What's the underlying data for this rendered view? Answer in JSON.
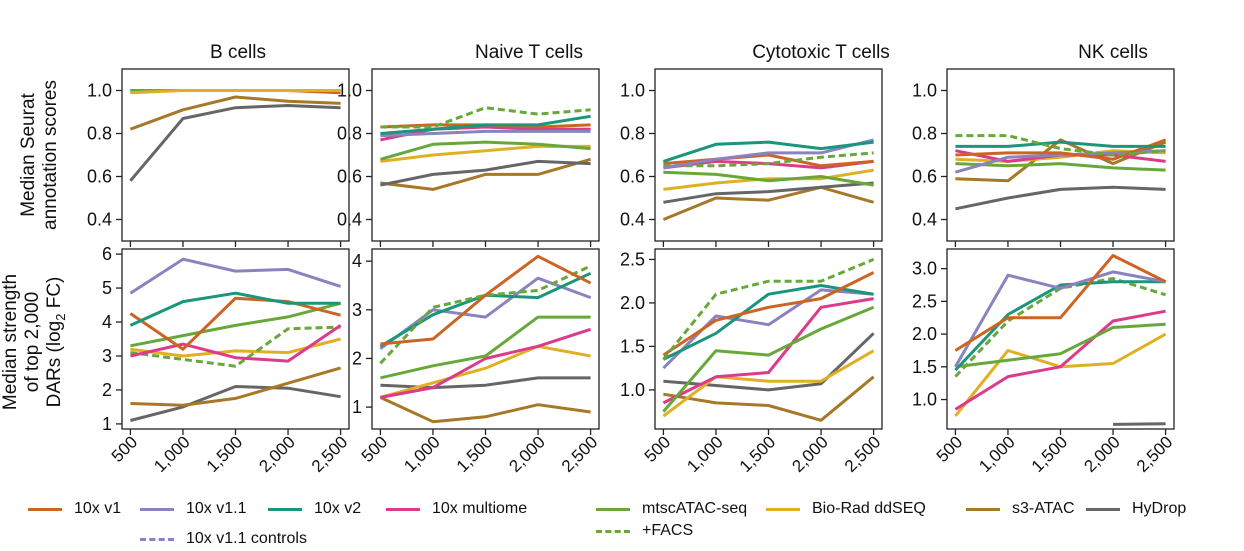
{
  "figure": {
    "row_titles": {
      "top": [
        "Median Seurat",
        "annotation scores"
      ],
      "bottom": [
        "Median strength",
        "of top 2,000",
        "DARs (log",
        "2",
        " FC)"
      ]
    }
  },
  "legend": [
    {
      "key": "10x_v1",
      "label": "10x v1",
      "color": "#cc6424",
      "dashed": false
    },
    {
      "key": "10x_v1_1",
      "label": "10x v1.1",
      "color": "#8b82c0",
      "dashed": false
    },
    {
      "key": "10x_v2",
      "label": "10x v2",
      "color": "#1a967a",
      "dashed": false
    },
    {
      "key": "10x_multiome",
      "label": "10x multiome",
      "color": "#de3a8a",
      "dashed": false
    },
    {
      "key": "mtscatac",
      "label": "mtscATAC-seq",
      "color": "#68a83a",
      "dashed": false
    },
    {
      "key": "facs",
      "label": "+FACS",
      "color": "#68a83a",
      "dashed": true
    },
    {
      "key": "biorad",
      "label": "Bio-Rad ddSEQ",
      "color": "#e0b024",
      "dashed": false
    },
    {
      "key": "s3atac",
      "label": "s3-ATAC",
      "color": "#a67828",
      "dashed": false
    },
    {
      "key": "hydrop",
      "label": "HyDrop",
      "color": "#666666",
      "dashed": false
    },
    {
      "key": "10x_v1_1_controls",
      "label": "10x v1.1 controls",
      "color": "#8b82c0",
      "dashed": true
    }
  ],
  "chart_data": [
    {
      "type": "line",
      "title": "B cells",
      "row": "annotation",
      "col": 0,
      "ylabel": "Median Seurat annotation scores",
      "x": [
        500,
        1000,
        1500,
        2000,
        2500
      ],
      "xlim": [
        420,
        2580
      ],
      "ylim": [
        0.3,
        1.1
      ],
      "yticks": [
        0.4,
        0.6,
        0.8,
        1.0
      ],
      "ytick_labels": [
        "0.4",
        "0.6",
        "0.8",
        "1.0"
      ],
      "series": [
        {
          "key": "s3atac",
          "values": [
            0.82,
            0.91,
            0.97,
            0.95,
            0.94
          ]
        },
        {
          "key": "hydrop",
          "values": [
            0.58,
            0.87,
            0.92,
            0.93,
            0.92
          ]
        },
        {
          "key": "10x_v1",
          "values": [
            1.0,
            1.0,
            1.0,
            1.0,
            0.99
          ]
        },
        {
          "key": "10x_v1_1",
          "values": [
            1.0,
            1.0,
            1.0,
            1.0,
            1.0
          ]
        },
        {
          "key": "10x_v2",
          "values": [
            1.0,
            1.0,
            1.0,
            1.0,
            1.0
          ]
        },
        {
          "key": "mtscatac",
          "values": [
            1.0,
            1.0,
            1.0,
            1.0,
            1.0
          ]
        },
        {
          "key": "biorad",
          "values": [
            0.99,
            1.0,
            1.0,
            1.0,
            1.0
          ]
        }
      ]
    },
    {
      "type": "line",
      "title": "Naive T cells",
      "row": "annotation",
      "col": 1,
      "x": [
        500,
        1000,
        1500,
        2000,
        2500
      ],
      "xlim": [
        420,
        2580
      ],
      "ylim": [
        0.3,
        1.1
      ],
      "yticks": [
        0.4,
        0.6,
        0.8,
        1.0
      ],
      "ytick_labels": [
        "0.4",
        "0.6",
        "0.8",
        "1.0"
      ],
      "series": [
        {
          "key": "s3atac",
          "values": [
            0.57,
            0.54,
            0.61,
            0.61,
            0.68
          ]
        },
        {
          "key": "hydrop",
          "values": [
            0.56,
            0.61,
            0.63,
            0.67,
            0.66
          ]
        },
        {
          "key": "biorad",
          "values": [
            0.67,
            0.7,
            0.72,
            0.74,
            0.74
          ]
        },
        {
          "key": "mtscatac",
          "values": [
            0.68,
            0.75,
            0.76,
            0.75,
            0.73
          ]
        },
        {
          "key": "10x_multiome",
          "values": [
            0.77,
            0.82,
            0.83,
            0.82,
            0.82
          ]
        },
        {
          "key": "10x_v1_1",
          "values": [
            0.79,
            0.8,
            0.81,
            0.81,
            0.81
          ]
        },
        {
          "key": "10x_v1",
          "values": [
            0.83,
            0.84,
            0.84,
            0.83,
            0.84
          ]
        },
        {
          "key": "10x_v2",
          "values": [
            0.8,
            0.82,
            0.84,
            0.84,
            0.88
          ]
        },
        {
          "key": "facs",
          "values": [
            0.83,
            0.83,
            0.92,
            0.89,
            0.91
          ]
        }
      ]
    },
    {
      "type": "line",
      "title": "Cytotoxic T cells",
      "row": "annotation",
      "col": 2,
      "x": [
        500,
        1000,
        1500,
        2000,
        2500
      ],
      "xlim": [
        420,
        2580
      ],
      "ylim": [
        0.3,
        1.1
      ],
      "yticks": [
        0.4,
        0.6,
        0.8,
        1.0
      ],
      "ytick_labels": [
        "0.4",
        "0.6",
        "0.8",
        "1.0"
      ],
      "series": [
        {
          "key": "s3atac",
          "values": [
            0.4,
            0.5,
            0.49,
            0.55,
            0.48
          ]
        },
        {
          "key": "hydrop",
          "values": [
            0.48,
            0.52,
            0.53,
            0.55,
            0.57
          ]
        },
        {
          "key": "biorad",
          "values": [
            0.54,
            0.57,
            0.59,
            0.59,
            0.63
          ]
        },
        {
          "key": "mtscatac",
          "values": [
            0.62,
            0.61,
            0.58,
            0.6,
            0.56
          ]
        },
        {
          "key": "10x_multiome",
          "values": [
            0.64,
            0.67,
            0.66,
            0.64,
            0.67
          ]
        },
        {
          "key": "10x_v1",
          "values": [
            0.66,
            0.68,
            0.7,
            0.65,
            0.67
          ]
        },
        {
          "key": "facs",
          "values": [
            0.65,
            0.65,
            0.66,
            0.69,
            0.71
          ]
        },
        {
          "key": "10x_v1_1",
          "values": [
            0.64,
            0.68,
            0.71,
            0.71,
            0.77
          ]
        },
        {
          "key": "10x_v2",
          "values": [
            0.67,
            0.75,
            0.76,
            0.73,
            0.76
          ]
        }
      ]
    },
    {
      "type": "line",
      "title": "NK cells",
      "row": "annotation",
      "col": 3,
      "x": [
        500,
        1000,
        1500,
        2000,
        2500
      ],
      "xlim": [
        420,
        2580
      ],
      "ylim": [
        0.3,
        1.1
      ],
      "yticks": [
        0.4,
        0.6,
        0.8,
        1.0
      ],
      "ytick_labels": [
        "0.4",
        "0.6",
        "0.8",
        "1.0"
      ],
      "series": [
        {
          "key": "hydrop",
          "values": [
            0.45,
            0.5,
            0.54,
            0.55,
            0.54
          ]
        },
        {
          "key": "s3atac",
          "values": [
            0.59,
            0.58,
            0.77,
            0.66,
            0.76
          ]
        },
        {
          "key": "mtscatac",
          "values": [
            0.66,
            0.65,
            0.66,
            0.64,
            0.63
          ]
        },
        {
          "key": "biorad",
          "values": [
            0.68,
            0.67,
            0.69,
            0.72,
            0.71
          ]
        },
        {
          "key": "10x_multiome",
          "values": [
            0.72,
            0.67,
            0.7,
            0.7,
            0.67
          ]
        },
        {
          "key": "10x_v1_1",
          "values": [
            0.62,
            0.69,
            0.7,
            0.71,
            0.72
          ]
        },
        {
          "key": "10x_v1",
          "values": [
            0.7,
            0.71,
            0.71,
            0.68,
            0.77
          ]
        },
        {
          "key": "10x_v2",
          "values": [
            0.74,
            0.74,
            0.76,
            0.74,
            0.74
          ]
        },
        {
          "key": "facs",
          "values": [
            0.79,
            0.79,
            0.73,
            0.7,
            0.72
          ]
        }
      ]
    },
    {
      "type": "line",
      "row": "dar",
      "col": 0,
      "ylabel": "Median strength of top 2,000 DARs (log2 FC)",
      "x": [
        500,
        1000,
        1500,
        2000,
        2500
      ],
      "xlim": [
        420,
        2580
      ],
      "ylim": [
        0.85,
        6.15
      ],
      "yticks": [
        1,
        2,
        3,
        4,
        5,
        6
      ],
      "ytick_labels": [
        "1",
        "2",
        "3",
        "4",
        "5",
        "6"
      ],
      "xtick_labels": [
        "500",
        "1,000",
        "1,500",
        "2,000",
        "2,500"
      ],
      "series": [
        {
          "key": "hydrop",
          "values": [
            1.1,
            1.5,
            2.1,
            2.05,
            1.8
          ]
        },
        {
          "key": "s3atac",
          "values": [
            1.6,
            1.55,
            1.75,
            2.2,
            2.65
          ]
        },
        {
          "key": "biorad",
          "values": [
            3.2,
            3.0,
            3.15,
            3.1,
            3.5
          ]
        },
        {
          "key": "facs",
          "values": [
            3.1,
            2.9,
            2.7,
            3.8,
            3.85
          ]
        },
        {
          "key": "10x_multiome",
          "values": [
            3.0,
            3.35,
            2.95,
            2.85,
            3.9
          ]
        },
        {
          "key": "mtscatac",
          "values": [
            3.3,
            3.6,
            3.9,
            4.15,
            4.55
          ]
        },
        {
          "key": "10x_v1",
          "values": [
            4.25,
            3.2,
            4.7,
            4.6,
            4.2
          ]
        },
        {
          "key": "10x_v2",
          "values": [
            3.9,
            4.6,
            4.85,
            4.55,
            4.55
          ]
        },
        {
          "key": "10x_v1_1",
          "values": [
            4.85,
            5.85,
            5.5,
            5.55,
            5.05
          ]
        }
      ]
    },
    {
      "type": "line",
      "row": "dar",
      "col": 1,
      "x": [
        500,
        1000,
        1500,
        2000,
        2500
      ],
      "xlim": [
        420,
        2580
      ],
      "ylim": [
        0.55,
        4.25
      ],
      "yticks": [
        1,
        2,
        3,
        4
      ],
      "ytick_labels": [
        "1",
        "2",
        "3",
        "4"
      ],
      "xtick_labels": [
        "500",
        "1,000",
        "1,500",
        "2,000",
        "2,500"
      ],
      "series": [
        {
          "key": "s3atac",
          "values": [
            1.2,
            0.7,
            0.8,
            1.05,
            0.9
          ]
        },
        {
          "key": "hydrop",
          "values": [
            1.45,
            1.4,
            1.45,
            1.6,
            1.6
          ]
        },
        {
          "key": "biorad",
          "values": [
            1.2,
            1.5,
            1.8,
            2.25,
            2.05
          ]
        },
        {
          "key": "10x_multiome",
          "values": [
            1.2,
            1.4,
            2.0,
            2.25,
            2.6
          ]
        },
        {
          "key": "mtscatac",
          "values": [
            1.6,
            1.85,
            2.05,
            2.85,
            2.85
          ]
        },
        {
          "key": "10x_v1_1",
          "values": [
            2.2,
            3.0,
            2.85,
            3.65,
            3.25
          ]
        },
        {
          "key": "10x_v2",
          "values": [
            2.25,
            2.9,
            3.3,
            3.25,
            3.75
          ]
        },
        {
          "key": "facs",
          "values": [
            1.9,
            3.05,
            3.3,
            3.4,
            3.9
          ]
        },
        {
          "key": "10x_v1",
          "values": [
            2.3,
            2.4,
            3.3,
            4.1,
            3.55
          ]
        }
      ]
    },
    {
      "type": "line",
      "row": "dar",
      "col": 2,
      "x": [
        500,
        1000,
        1500,
        2000,
        2500
      ],
      "xlim": [
        420,
        2580
      ],
      "ylim": [
        0.55,
        2.62
      ],
      "yticks": [
        1.0,
        1.5,
        2.0,
        2.5
      ],
      "ytick_labels": [
        "1.0",
        "1.5",
        "2.0",
        "2.5"
      ],
      "xtick_labels": [
        "500",
        "1,000",
        "1,500",
        "2,000",
        "2,500"
      ],
      "series": [
        {
          "key": "s3atac",
          "values": [
            0.95,
            0.85,
            0.82,
            0.65,
            1.15
          ]
        },
        {
          "key": "hydrop",
          "values": [
            1.1,
            1.05,
            1.0,
            1.07,
            1.65
          ]
        },
        {
          "key": "biorad",
          "values": [
            0.7,
            1.15,
            1.1,
            1.1,
            1.45
          ]
        },
        {
          "key": "10x_multiome",
          "values": [
            0.85,
            1.15,
            1.2,
            1.95,
            2.05
          ]
        },
        {
          "key": "mtscatac",
          "values": [
            0.75,
            1.45,
            1.4,
            1.7,
            1.95
          ]
        },
        {
          "key": "10x_v1_1",
          "values": [
            1.25,
            1.85,
            1.75,
            2.15,
            2.1
          ]
        },
        {
          "key": "10x_v2",
          "values": [
            1.35,
            1.65,
            2.1,
            2.2,
            2.1
          ]
        },
        {
          "key": "10x_v1",
          "values": [
            1.4,
            1.8,
            1.95,
            2.05,
            2.35
          ]
        },
        {
          "key": "facs",
          "values": [
            1.35,
            2.1,
            2.25,
            2.25,
            2.5
          ]
        }
      ]
    },
    {
      "type": "line",
      "row": "dar",
      "col": 3,
      "x": [
        500,
        1000,
        1500,
        2000,
        2500
      ],
      "xlim": [
        420,
        2580
      ],
      "ylim": [
        0.55,
        3.3
      ],
      "yticks": [
        1.0,
        1.5,
        2.0,
        2.5,
        3.0
      ],
      "ytick_labels": [
        "1.0",
        "1.5",
        "2.0",
        "2.5",
        "3.0"
      ],
      "xtick_labels": [
        "500",
        "1,000",
        "1,500",
        "2,000",
        "2,500"
      ],
      "series": [
        {
          "key": "hydrop",
          "x": [
            2000,
            2500
          ],
          "values": [
            0.62,
            0.63
          ]
        },
        {
          "key": "biorad",
          "values": [
            0.75,
            1.75,
            1.5,
            1.55,
            2.0
          ]
        },
        {
          "key": "10x_multiome",
          "values": [
            0.85,
            1.35,
            1.5,
            2.2,
            2.35
          ]
        },
        {
          "key": "mtscatac",
          "values": [
            1.5,
            1.6,
            1.7,
            2.1,
            2.15
          ]
        },
        {
          "key": "facs",
          "values": [
            1.35,
            2.2,
            2.7,
            2.85,
            2.6
          ]
        },
        {
          "key": "10x_v2",
          "values": [
            1.45,
            2.3,
            2.75,
            2.8,
            2.8
          ]
        },
        {
          "key": "10x_v1_1",
          "values": [
            1.5,
            2.9,
            2.7,
            2.95,
            2.8
          ]
        },
        {
          "key": "10x_v1",
          "values": [
            1.75,
            2.25,
            2.25,
            3.2,
            2.8
          ]
        }
      ]
    }
  ]
}
